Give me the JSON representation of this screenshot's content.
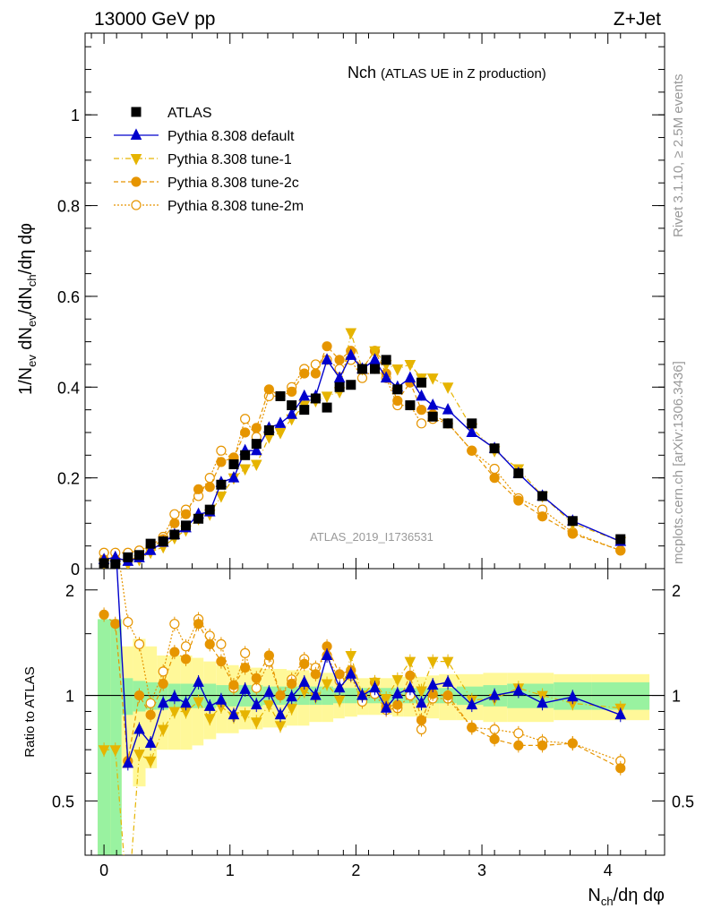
{
  "header": {
    "left": "13000 GeV pp",
    "right": "Z+Jet"
  },
  "side_labels": {
    "rivet": "Rivet 3.1.10, ≥ 2.5M events",
    "mcplots": "mcplots.cern.ch [arXiv:1306.3436]"
  },
  "chart_data": {
    "type": "scatter",
    "title": "Nch",
    "subtitle": "(ATLAS UE in Z production)",
    "analysis_tag": "ATLAS_2019_I1736531",
    "ylabel_main": "1/N_ev dN_ev/dN_ch/dη dφ",
    "ylabel_ratio": "Ratio to ATLAS",
    "xlabel": "N_ch/dη dφ",
    "xlim": [
      -0.15,
      4.45
    ],
    "ylim_main": [
      0,
      1.18
    ],
    "ylim_ratio": [
      0.35,
      2.3
    ],
    "x_ticks": [
      "0",
      "1",
      "2",
      "3",
      "4"
    ],
    "y_ticks_main": [
      "0",
      "0.2",
      "0.4",
      "0.6",
      "0.8",
      "1"
    ],
    "y_ticks_ratio": [
      "0.5",
      "1",
      "2"
    ],
    "x": [
      0.0,
      0.09,
      0.19,
      0.28,
      0.37,
      0.47,
      0.56,
      0.65,
      0.75,
      0.84,
      0.93,
      1.03,
      1.12,
      1.21,
      1.31,
      1.4,
      1.49,
      1.59,
      1.68,
      1.77,
      1.87,
      1.96,
      2.05,
      2.15,
      2.24,
      2.33,
      2.43,
      2.52,
      2.61,
      2.73,
      2.92,
      3.1,
      3.29,
      3.48,
      3.72,
      4.1
    ],
    "legend": [
      "ATLAS",
      "Pythia 8.308 default",
      "Pythia 8.308 tune-1",
      "Pythia 8.308 tune-2c",
      "Pythia 8.308 tune-2m"
    ],
    "series": [
      {
        "name": "ATLAS",
        "color": "#000000",
        "values": [
          0.012,
          0.01,
          0.025,
          0.03,
          0.055,
          0.06,
          0.075,
          0.095,
          0.11,
          0.13,
          0.185,
          0.23,
          0.25,
          0.275,
          0.305,
          0.38,
          0.36,
          0.35,
          0.375,
          0.355,
          0.4,
          0.405,
          0.44,
          0.44,
          0.46,
          0.395,
          0.36,
          0.41,
          0.335,
          0.32,
          0.32,
          0.265,
          0.21,
          0.16,
          0.105,
          0.065
        ],
        "ratio": [
          1,
          1,
          1,
          1,
          1,
          1,
          1,
          1,
          1,
          1,
          1,
          1,
          1,
          1,
          1,
          1,
          1,
          1,
          1,
          1,
          1,
          1,
          1,
          1,
          1,
          1,
          1,
          1,
          1,
          1,
          1,
          1,
          1,
          1,
          1,
          1
        ]
      },
      {
        "name": "Pythia 8.308 default",
        "color": "#0000cc",
        "values": [
          0.02,
          0.025,
          0.016,
          0.024,
          0.04,
          0.058,
          0.075,
          0.09,
          0.12,
          0.125,
          0.19,
          0.2,
          0.26,
          0.26,
          0.31,
          0.32,
          0.34,
          0.38,
          0.38,
          0.46,
          0.42,
          0.47,
          0.44,
          0.46,
          0.42,
          0.4,
          0.42,
          0.38,
          0.36,
          0.35,
          0.3,
          0.265,
          0.21,
          0.16,
          0.105,
          0.06
        ],
        "ratio": [
          3.0,
          2.8,
          0.64,
          0.8,
          0.73,
          0.95,
          0.99,
          0.95,
          1.09,
          0.93,
          0.97,
          0.88,
          1.04,
          0.94,
          1.02,
          0.88,
          0.99,
          1.09,
          1.0,
          1.3,
          1.05,
          1.15,
          1.0,
          1.05,
          0.92,
          1.01,
          1.05,
          0.95,
          1.07,
          1.09,
          0.94,
          1.0,
          1.03,
          0.95,
          0.99,
          0.88
        ]
      },
      {
        "name": "Pythia 8.308 tune-1",
        "color": "#e6b400",
        "values": [
          0.01,
          0.01,
          0.01,
          0.02,
          0.036,
          0.048,
          0.068,
          0.085,
          0.11,
          0.12,
          0.16,
          0.2,
          0.22,
          0.23,
          0.29,
          0.3,
          0.33,
          0.36,
          0.37,
          0.38,
          0.39,
          0.52,
          0.44,
          0.48,
          0.45,
          0.44,
          0.45,
          0.42,
          0.42,
          0.4,
          0.31,
          0.26,
          0.22,
          0.16,
          0.1,
          0.06
        ],
        "ratio": [
          0.7,
          0.7,
          0.25,
          0.68,
          0.65,
          0.8,
          0.9,
          0.9,
          0.96,
          0.86,
          0.93,
          0.87,
          0.88,
          0.84,
          0.94,
          0.82,
          0.92,
          1.03,
          0.99,
          1.08,
          0.97,
          1.3,
          1.0,
          1.09,
          0.98,
          1.11,
          1.25,
          1.03,
          1.25,
          1.25,
          0.97,
          0.98,
          1.05,
          1.0,
          0.95,
          0.92
        ]
      },
      {
        "name": "Pythia 8.308 tune-2c",
        "color": "#e69500",
        "values": [
          0.02,
          0.02,
          0.02,
          0.025,
          0.045,
          0.065,
          0.1,
          0.12,
          0.175,
          0.18,
          0.235,
          0.245,
          0.3,
          0.31,
          0.395,
          0.38,
          0.39,
          0.43,
          0.43,
          0.49,
          0.46,
          0.48,
          0.44,
          0.48,
          0.43,
          0.37,
          0.41,
          0.35,
          0.34,
          0.32,
          0.26,
          0.2,
          0.15,
          0.115,
          0.077,
          0.04
        ],
        "ratio": [
          1.7,
          1.6,
          0.65,
          1.0,
          0.88,
          1.08,
          1.33,
          1.27,
          1.6,
          1.4,
          1.25,
          1.07,
          1.2,
          1.12,
          1.3,
          1.0,
          1.08,
          1.23,
          1.15,
          1.38,
          1.15,
          1.18,
          1.0,
          1.09,
          0.93,
          0.94,
          1.14,
          0.85,
          1.01,
          1.0,
          0.81,
          0.75,
          0.72,
          0.72,
          0.73,
          0.62
        ]
      },
      {
        "name": "Pythia 8.308 tune-2m",
        "color": "#e69500",
        "values": [
          0.035,
          0.035,
          0.035,
          0.04,
          0.05,
          0.07,
          0.12,
          0.13,
          0.16,
          0.2,
          0.26,
          0.24,
          0.33,
          0.29,
          0.38,
          0.38,
          0.4,
          0.44,
          0.45,
          0.46,
          0.44,
          0.46,
          0.42,
          0.44,
          0.42,
          0.36,
          0.36,
          0.32,
          0.33,
          0.32,
          0.26,
          0.22,
          0.155,
          0.13,
          0.08,
          0.04
        ],
        "ratio": [
          3.0,
          2.9,
          1.62,
          1.4,
          0.95,
          1.17,
          1.6,
          1.38,
          1.65,
          1.48,
          1.4,
          1.05,
          1.32,
          1.05,
          1.25,
          1.0,
          1.11,
          1.27,
          1.2,
          1.3,
          1.1,
          1.14,
          0.96,
          1.01,
          0.91,
          0.92,
          1.0,
          0.8,
          0.98,
          0.98,
          0.81,
          0.8,
          0.78,
          0.74,
          0.73,
          0.65
        ]
      }
    ],
    "bands": {
      "inner_color": "#99f2a0",
      "outer_color": "#fff899",
      "x_edges": [
        -0.05,
        0.05,
        0.14,
        0.23,
        0.33,
        0.42,
        0.51,
        0.61,
        0.7,
        0.79,
        0.89,
        0.98,
        1.07,
        1.17,
        1.26,
        1.35,
        1.45,
        1.54,
        1.63,
        1.73,
        1.82,
        1.91,
        2.01,
        2.1,
        2.19,
        2.29,
        2.38,
        2.47,
        2.56,
        2.66,
        2.8,
        3.01,
        3.2,
        3.38,
        3.57,
        3.87,
        4.33
      ],
      "inner": [
        0.65,
        0.65,
        0.12,
        0.1,
        0.09,
        0.09,
        0.08,
        0.08,
        0.08,
        0.08,
        0.07,
        0.07,
        0.07,
        0.07,
        0.06,
        0.06,
        0.06,
        0.06,
        0.06,
        0.06,
        0.05,
        0.05,
        0.05,
        0.05,
        0.05,
        0.05,
        0.05,
        0.05,
        0.05,
        0.05,
        0.06,
        0.07,
        0.08,
        0.08,
        0.09,
        0.09
      ],
      "outer": [
        0.65,
        0.65,
        0.38,
        0.45,
        0.38,
        0.3,
        0.3,
        0.3,
        0.28,
        0.25,
        0.22,
        0.22,
        0.2,
        0.2,
        0.19,
        0.19,
        0.18,
        0.18,
        0.16,
        0.16,
        0.14,
        0.13,
        0.12,
        0.12,
        0.12,
        0.13,
        0.13,
        0.13,
        0.14,
        0.15,
        0.15,
        0.16,
        0.16,
        0.16,
        0.15,
        0.15
      ]
    }
  }
}
